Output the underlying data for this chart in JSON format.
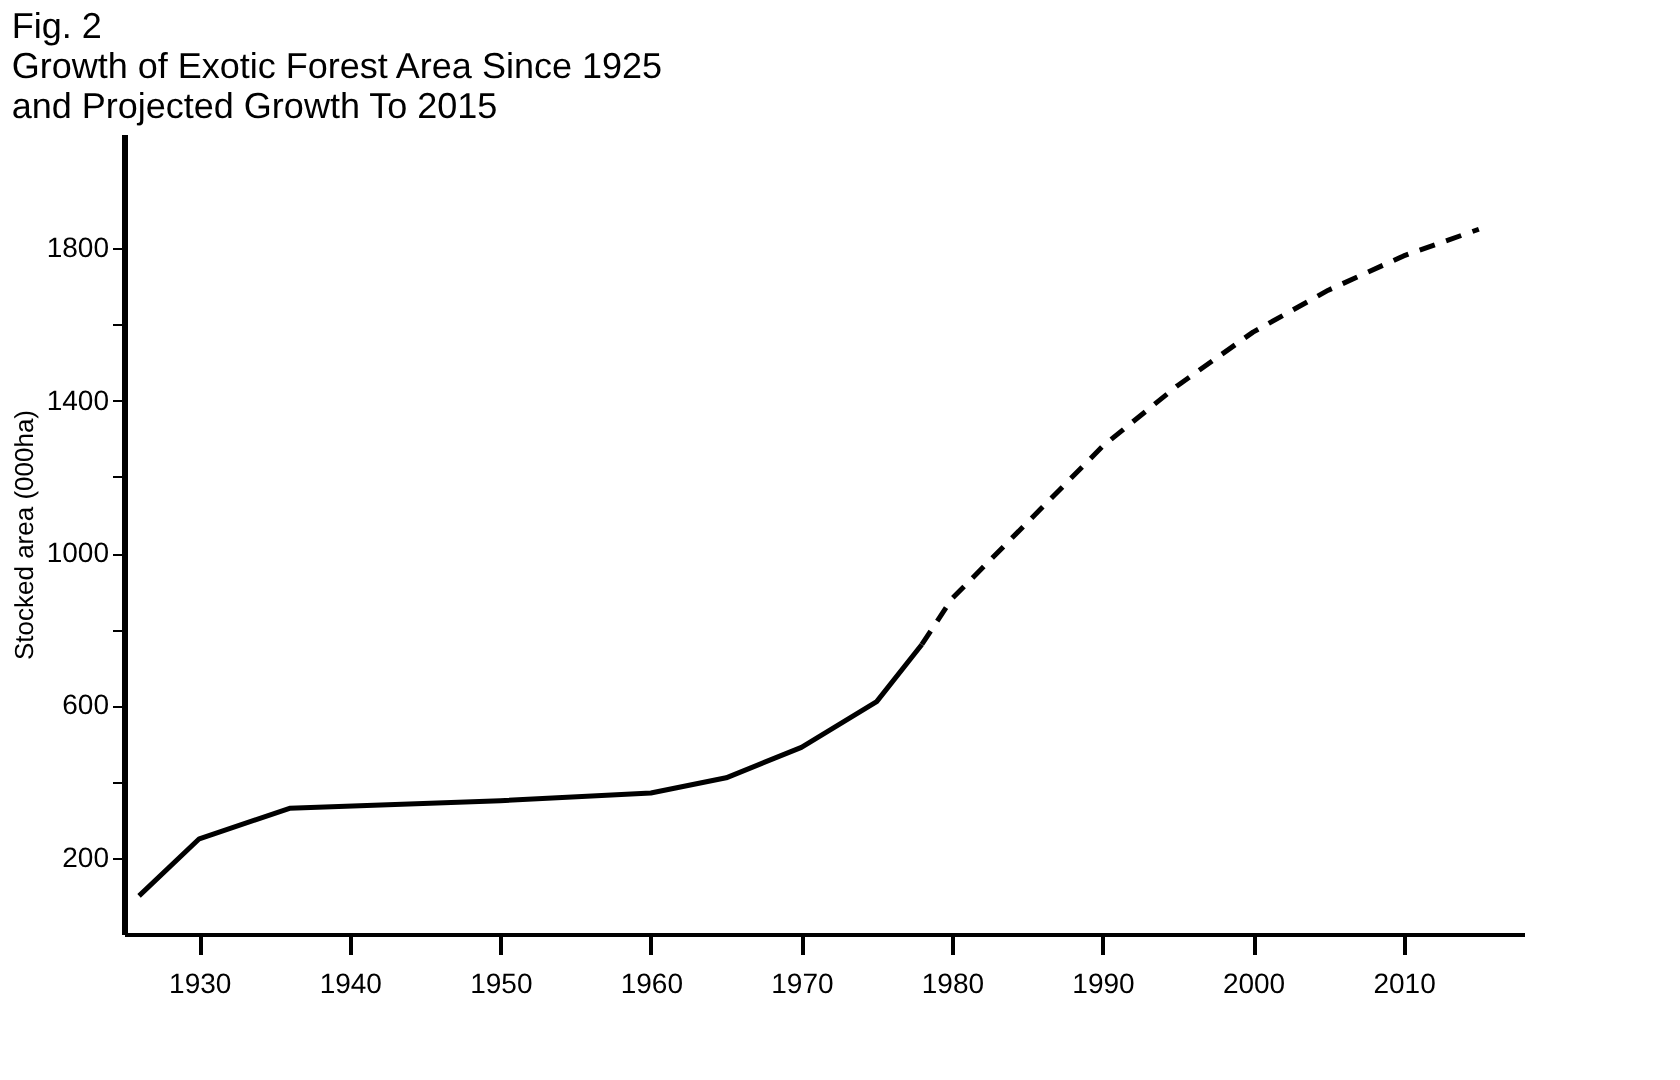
{
  "chart_data": {
    "type": "line",
    "title": [
      "Fig. 2",
      "Growth of Exotic Forest Area Since 1925",
      "and Projected Growth To 2015"
    ],
    "ylabel": "Stocked area (000ha)",
    "xlim": [
      1925,
      2018
    ],
    "xticks": [
      1930,
      1940,
      1950,
      1960,
      1970,
      1980,
      1990,
      2000,
      2010
    ],
    "ylim": [
      0,
      2100
    ],
    "yticks": [
      200,
      {
        "value": 400,
        "label": null
      },
      600,
      {
        "value": 800,
        "label": null
      },
      1000,
      {
        "value": 1200,
        "label": null
      },
      1400,
      {
        "value": 1600,
        "label": null
      },
      1800
    ],
    "grid": false,
    "marker": "none",
    "series": [
      {
        "color": "#000000",
        "line_style": "solid",
        "x": [
          1926,
          1930,
          1936,
          1950,
          1960,
          1965,
          1970,
          1975,
          1978
        ],
        "values": [
          100,
          250,
          330,
          350,
          370,
          410,
          490,
          610,
          760
        ]
      },
      {
        "color": "#000000",
        "line_style": "dashed",
        "x": [
          1978,
          1980,
          1985,
          1990,
          1995,
          2000,
          2005,
          2010,
          2015
        ],
        "values": [
          760,
          880,
          1080,
          1280,
          1440,
          1580,
          1690,
          1780,
          1850
        ]
      }
    ]
  }
}
